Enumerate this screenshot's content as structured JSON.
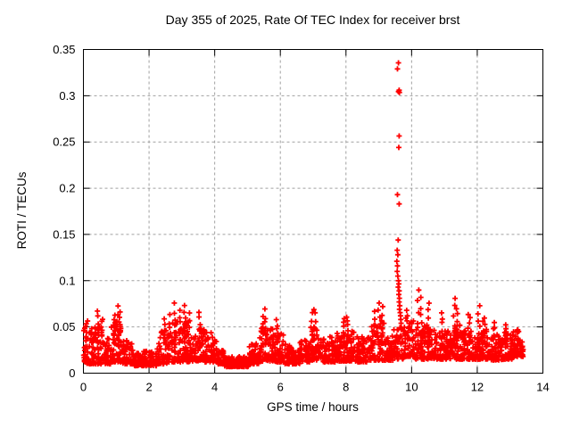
{
  "chart_data": {
    "type": "scatter",
    "title": "Day 355 of 2025, Rate Of TEC Index for receiver brst",
    "xlabel": "GPS time / hours",
    "ylabel": "ROTI / TECUs",
    "xlim": [
      0,
      14
    ],
    "ylim": [
      0,
      0.35
    ],
    "xticks": [
      0,
      2,
      4,
      6,
      8,
      10,
      12,
      14
    ],
    "xtick_labels": [
      "0",
      "2",
      "4",
      "6",
      "8",
      "10",
      "12",
      "14"
    ],
    "yticks": [
      0,
      0.05,
      0.1,
      0.15,
      0.2,
      0.25,
      0.3,
      0.35
    ],
    "ytick_labels": [
      "0",
      "0.05",
      "0.1",
      "0.15",
      "0.2",
      "0.25",
      "0.3",
      "0.35"
    ],
    "grid": "dashed-at-major-ticks",
    "legend": "none",
    "marker": "+",
    "x_data_range": [
      0,
      13.4
    ],
    "colors": {
      "marker": "#ff0000",
      "grid": "#a0a0a0",
      "axis": "#000000",
      "background": "#ffffff",
      "text": "#000000"
    },
    "series": [
      {
        "name": "ROTI",
        "outlier_points": [
          [
            9.6,
            0.3355
          ],
          [
            9.57,
            0.329
          ],
          [
            9.62,
            0.306
          ],
          [
            9.6,
            0.3045
          ],
          [
            9.63,
            0.3035
          ],
          [
            9.62,
            0.2565
          ],
          [
            9.61,
            0.244
          ],
          [
            9.57,
            0.193
          ],
          [
            9.62,
            0.183
          ],
          [
            9.59,
            0.144
          ],
          [
            9.56,
            0.133
          ],
          [
            9.58,
            0.128
          ],
          [
            9.55,
            0.121
          ],
          [
            9.57,
            0.116
          ],
          [
            9.56,
            0.11
          ],
          [
            9.58,
            0.105
          ],
          [
            9.6,
            0.1
          ],
          [
            9.61,
            0.0965
          ],
          [
            9.59,
            0.093
          ],
          [
            9.62,
            0.089
          ],
          [
            9.61,
            0.085
          ],
          [
            9.63,
            0.081
          ],
          [
            9.62,
            0.077
          ],
          [
            9.64,
            0.073
          ],
          [
            9.63,
            0.069
          ],
          [
            9.65,
            0.0655
          ],
          [
            9.66,
            0.062
          ],
          [
            9.67,
            0.058
          ],
          [
            9.68,
            0.054
          ],
          [
            9.85,
            0.068
          ],
          [
            9.87,
            0.062
          ],
          [
            9.86,
            0.0565
          ]
        ],
        "peak_columns": [
          [
            0.1,
            0.058
          ],
          [
            0.45,
            0.069
          ],
          [
            0.55,
            0.06
          ],
          [
            0.95,
            0.063
          ],
          [
            1.05,
            0.072
          ],
          [
            1.1,
            0.066
          ],
          [
            2.45,
            0.058
          ],
          [
            2.62,
            0.061
          ],
          [
            2.8,
            0.075
          ],
          [
            2.95,
            0.069
          ],
          [
            3.1,
            0.074
          ],
          [
            3.2,
            0.063
          ],
          [
            3.55,
            0.066
          ],
          [
            5.45,
            0.06
          ],
          [
            5.55,
            0.068
          ],
          [
            5.9,
            0.058
          ],
          [
            6.95,
            0.063
          ],
          [
            7.05,
            0.07
          ],
          [
            7.95,
            0.059
          ],
          [
            8.05,
            0.061
          ],
          [
            8.85,
            0.065
          ],
          [
            9.0,
            0.078
          ],
          [
            9.1,
            0.071
          ],
          [
            10.2,
            0.088
          ],
          [
            10.3,
            0.08
          ],
          [
            10.5,
            0.075
          ],
          [
            10.95,
            0.065
          ],
          [
            11.3,
            0.082
          ],
          [
            11.4,
            0.07
          ],
          [
            11.75,
            0.065
          ],
          [
            12.05,
            0.074
          ],
          [
            12.2,
            0.062
          ],
          [
            12.5,
            0.055
          ],
          [
            12.9,
            0.052
          ],
          [
            13.25,
            0.048
          ]
        ],
        "baseline_band_segments": [
          [
            0.0,
            0.3,
            0.01,
            0.05
          ],
          [
            0.3,
            0.6,
            0.01,
            0.055
          ],
          [
            0.6,
            0.85,
            0.01,
            0.04
          ],
          [
            0.85,
            1.2,
            0.012,
            0.058
          ],
          [
            1.2,
            1.5,
            0.01,
            0.036
          ],
          [
            1.5,
            2.25,
            0.008,
            0.024
          ],
          [
            2.25,
            2.55,
            0.01,
            0.046
          ],
          [
            2.55,
            3.25,
            0.012,
            0.056
          ],
          [
            3.25,
            3.5,
            0.013,
            0.04
          ],
          [
            3.5,
            3.7,
            0.014,
            0.052
          ],
          [
            3.7,
            4.1,
            0.012,
            0.044
          ],
          [
            4.1,
            4.3,
            0.01,
            0.026
          ],
          [
            4.3,
            5.05,
            0.007,
            0.018
          ],
          [
            5.05,
            5.35,
            0.01,
            0.032
          ],
          [
            5.35,
            5.8,
            0.013,
            0.05
          ],
          [
            5.8,
            6.1,
            0.012,
            0.044
          ],
          [
            6.1,
            6.6,
            0.01,
            0.032
          ],
          [
            6.6,
            6.9,
            0.012,
            0.036
          ],
          [
            6.9,
            7.3,
            0.014,
            0.05
          ],
          [
            7.3,
            7.7,
            0.012,
            0.04
          ],
          [
            7.7,
            8.3,
            0.013,
            0.046
          ],
          [
            8.3,
            8.7,
            0.012,
            0.04
          ],
          [
            8.7,
            9.3,
            0.014,
            0.054
          ],
          [
            9.3,
            9.45,
            0.014,
            0.042
          ],
          [
            9.45,
            9.75,
            0.015,
            0.05
          ],
          [
            9.75,
            10.1,
            0.018,
            0.06
          ],
          [
            10.1,
            10.5,
            0.015,
            0.052
          ],
          [
            10.5,
            10.8,
            0.015,
            0.052
          ],
          [
            10.8,
            11.2,
            0.015,
            0.046
          ],
          [
            11.2,
            11.5,
            0.015,
            0.052
          ],
          [
            11.5,
            12.0,
            0.015,
            0.046
          ],
          [
            12.0,
            12.3,
            0.015,
            0.048
          ],
          [
            12.3,
            12.8,
            0.014,
            0.042
          ],
          [
            12.8,
            13.1,
            0.015,
            0.044
          ],
          [
            13.1,
            13.4,
            0.018,
            0.046
          ]
        ]
      }
    ]
  }
}
